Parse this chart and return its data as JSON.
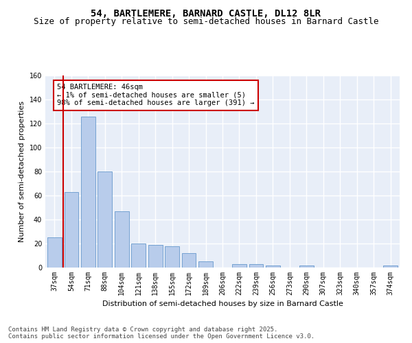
{
  "title": "54, BARTLEMERE, BARNARD CASTLE, DL12 8LR",
  "subtitle": "Size of property relative to semi-detached houses in Barnard Castle",
  "xlabel": "Distribution of semi-detached houses by size in Barnard Castle",
  "ylabel": "Number of semi-detached properties",
  "categories": [
    "37sqm",
    "54sqm",
    "71sqm",
    "88sqm",
    "104sqm",
    "121sqm",
    "138sqm",
    "155sqm",
    "172sqm",
    "189sqm",
    "206sqm",
    "222sqm",
    "239sqm",
    "256sqm",
    "273sqm",
    "290sqm",
    "307sqm",
    "323sqm",
    "340sqm",
    "357sqm",
    "374sqm"
  ],
  "values": [
    25,
    63,
    126,
    80,
    47,
    20,
    19,
    18,
    12,
    5,
    0,
    3,
    3,
    2,
    0,
    2,
    0,
    0,
    0,
    0,
    2
  ],
  "bar_color": "#b8cceb",
  "bar_edge_color": "#6699cc",
  "highlight_color": "#cc0000",
  "annotation_text": "54 BARTLEMERE: 46sqm\n← 1% of semi-detached houses are smaller (5)\n98% of semi-detached houses are larger (391) →",
  "annotation_box_color": "#ffffff",
  "annotation_box_edge_color": "#cc0000",
  "ylim": [
    0,
    160
  ],
  "yticks": [
    0,
    20,
    40,
    60,
    80,
    100,
    120,
    140,
    160
  ],
  "bg_color": "#e8eef8",
  "grid_color": "#ffffff",
  "footer": "Contains HM Land Registry data © Crown copyright and database right 2025.\nContains public sector information licensed under the Open Government Licence v3.0.",
  "title_fontsize": 10,
  "subtitle_fontsize": 9,
  "axis_label_fontsize": 8,
  "tick_fontsize": 7,
  "annotation_fontsize": 7.5,
  "footer_fontsize": 6.5
}
